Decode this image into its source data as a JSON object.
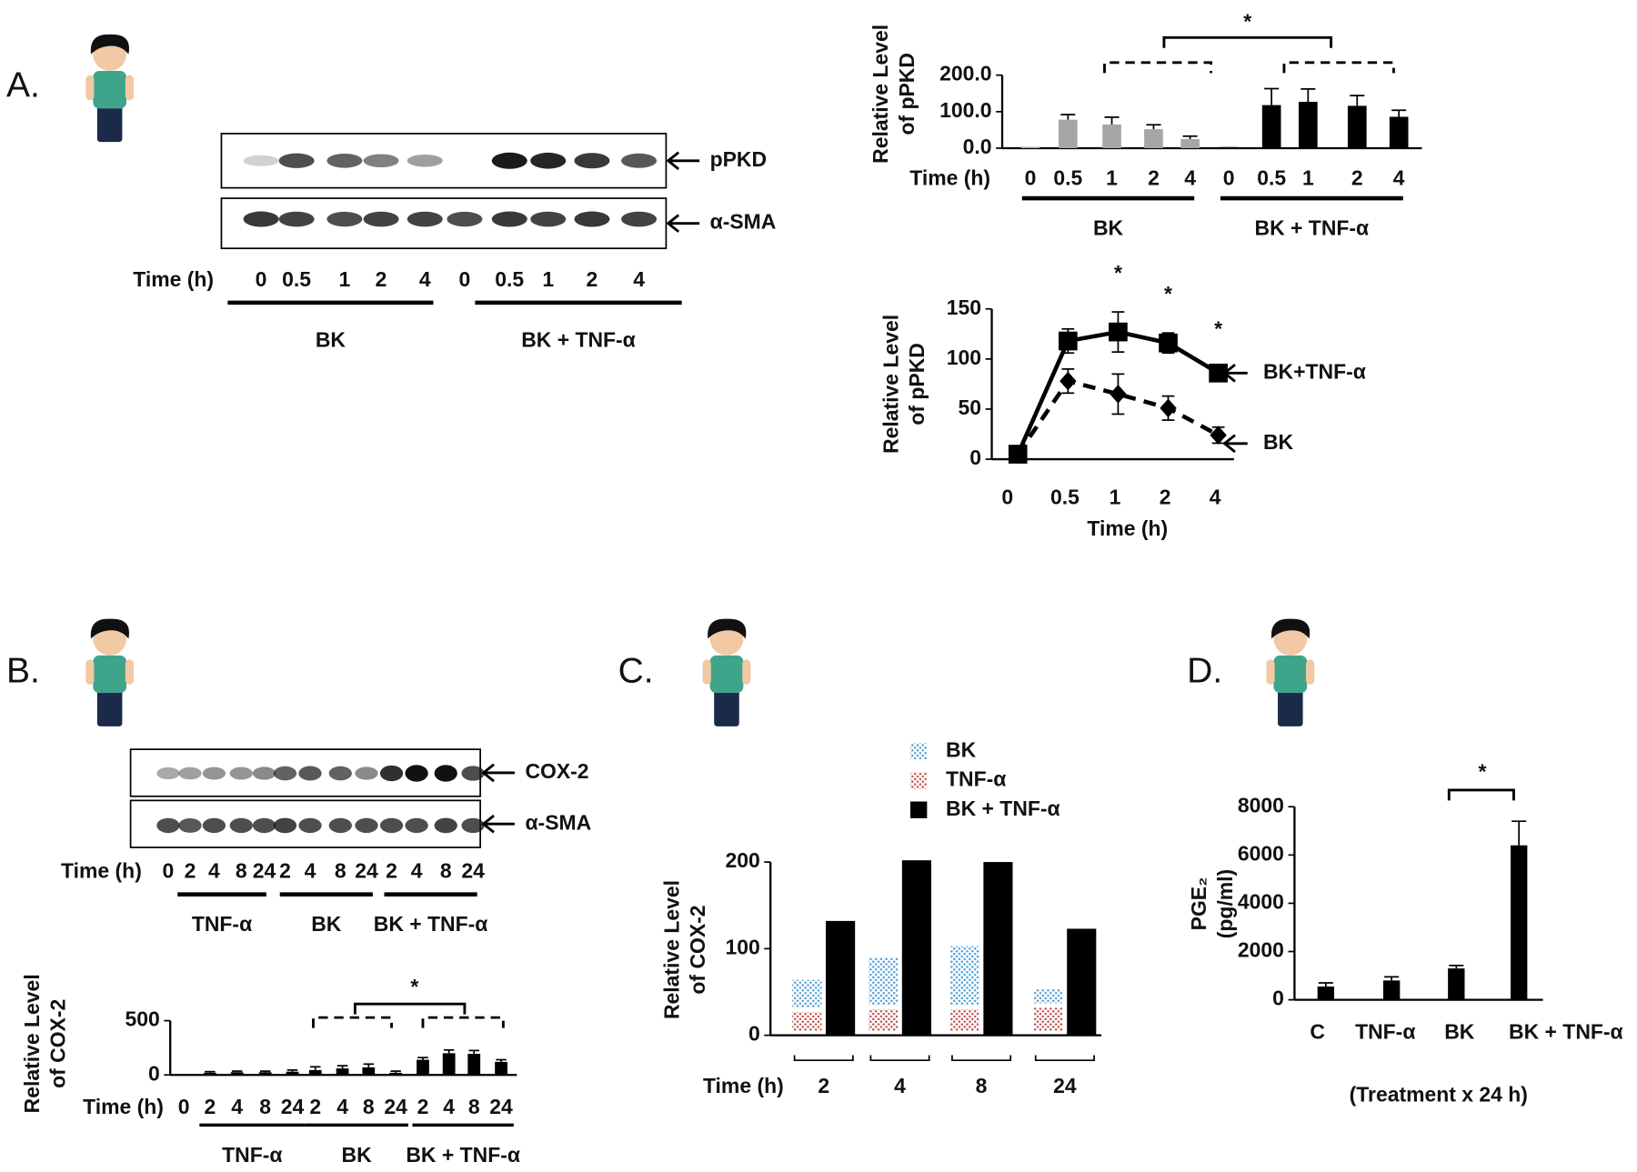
{
  "panel_labels": [
    "A.",
    "B.",
    "C.",
    "D."
  ],
  "blot_a": {
    "bands": [
      "pPKD",
      "α-SMA"
    ],
    "time_label": "Time (h)",
    "lanes": [
      "0",
      "0.5",
      "1",
      "2",
      "4",
      "0",
      "0.5",
      "1",
      "2",
      "4"
    ],
    "groups": [
      "BK",
      "BK + TNF-α"
    ]
  },
  "blot_b": {
    "bands": [
      "COX-2",
      "α-SMA"
    ],
    "time_label": "Time (h)",
    "lanes": [
      "0",
      "2",
      "4",
      "8",
      "24",
      "2",
      "4",
      "8",
      "24",
      "2",
      "4",
      "8",
      "24"
    ],
    "groups": [
      "TNF-α",
      "BK",
      "BK + TNF-α"
    ]
  },
  "chart_data": [
    {
      "type": "bar",
      "ylabel": [
        "Relative Level",
        "of pPKD"
      ],
      "xlabel": "Time (h)",
      "categories": [
        "0",
        "0.5",
        "1",
        "2",
        "4",
        "0",
        "0.5",
        "1",
        "2",
        "4"
      ],
      "series": [
        {
          "name": "BK",
          "color": "#a6a6a6",
          "values": [
            3,
            78,
            65,
            52,
            25,
            null,
            null,
            null,
            null,
            null
          ],
          "errors": [
            null,
            14,
            20,
            12,
            8,
            null,
            null,
            null,
            null,
            null
          ]
        },
        {
          "name": "BK + TNF-α",
          "color": "#000000",
          "values": [
            null,
            null,
            null,
            null,
            null,
            3,
            118,
            127,
            116,
            86
          ],
          "errors": [
            null,
            null,
            null,
            null,
            null,
            null,
            45,
            35,
            28,
            18
          ]
        }
      ],
      "ylim": [
        0,
        200
      ],
      "yticks": [
        {
          "value": 0,
          "label": "0.0"
        },
        {
          "value": 100,
          "label": "100.0"
        },
        {
          "value": 200,
          "label": "200.0"
        }
      ],
      "annotations": [
        "*"
      ]
    },
    {
      "type": "line",
      "ylabel": [
        "Relative Level",
        "of pPKD"
      ],
      "xlabel": "Time (h)",
      "categories": [
        "0",
        "0.5",
        "1",
        "2",
        "4"
      ],
      "series": [
        {
          "name": "BK+TNF-α",
          "color": "#000000",
          "marker": "square",
          "dash": false,
          "values": [
            5,
            118,
            127,
            116,
            86
          ],
          "errors": [
            null,
            12,
            20,
            10,
            5
          ]
        },
        {
          "name": "BK",
          "color": "#000000",
          "marker": "diamond",
          "dash": true,
          "values": [
            5,
            78,
            65,
            51,
            24
          ],
          "errors": [
            null,
            12,
            20,
            12,
            8
          ]
        }
      ],
      "ylim": [
        0,
        150
      ],
      "yticks": [
        0,
        50,
        100,
        150
      ],
      "annotations": [
        "*",
        "*",
        "*"
      ]
    },
    {
      "type": "bar",
      "ylabel": [
        "Relative Level",
        "of COX-2"
      ],
      "xlabel": "Time (h)",
      "categories": [
        "0",
        "2",
        "4",
        "8",
        "24",
        "2",
        "4",
        "8",
        "24",
        "2",
        "4",
        "8",
        "24"
      ],
      "groups": [
        "TNF-α",
        "BK",
        "BK + TNF-α"
      ],
      "color": "#000000",
      "values": [
        5,
        20,
        25,
        25,
        30,
        45,
        60,
        70,
        20,
        140,
        200,
        195,
        120
      ],
      "errors": [
        null,
        10,
        10,
        10,
        15,
        30,
        25,
        30,
        15,
        20,
        30,
        30,
        20
      ],
      "ylim": [
        0,
        500
      ],
      "yticks": [
        0,
        500
      ],
      "annotations": [
        "*"
      ]
    },
    {
      "type": "stacked",
      "ylabel": [
        "Relative Level",
        "of COX-2"
      ],
      "xlabel": "Time (h)",
      "categories": [
        "2",
        "4",
        "8",
        "24"
      ],
      "series": [
        {
          "name": "BK",
          "color": "#4f9fd6",
          "pattern": "dots",
          "stack": true,
          "values": [
            37,
            60,
            73,
            21
          ]
        },
        {
          "name": "TNF-α",
          "color": "#c0504d",
          "pattern": "dots",
          "stack": true,
          "values": [
            27,
            30,
            30,
            32
          ]
        },
        {
          "name": "BK + TNF-α",
          "color": "#000000",
          "stack": false,
          "values": [
            132,
            202,
            200,
            123
          ]
        }
      ],
      "ylim": [
        0,
        200
      ],
      "yticks": [
        0,
        100,
        200
      ]
    },
    {
      "type": "bar",
      "ylabel": [
        "PGE₂",
        "(pg/ml)"
      ],
      "xlabel": "(Treatment x 24 h)",
      "categories": [
        "C",
        "TNF-α",
        "BK",
        "BK + TNF-α"
      ],
      "color": "#000000",
      "values": [
        550,
        800,
        1300,
        6400
      ],
      "errors": [
        150,
        150,
        120,
        1000
      ],
      "ylim": [
        0,
        8000
      ],
      "yticks": [
        0,
        2000,
        4000,
        6000,
        8000
      ],
      "annotations": [
        "*"
      ]
    }
  ]
}
